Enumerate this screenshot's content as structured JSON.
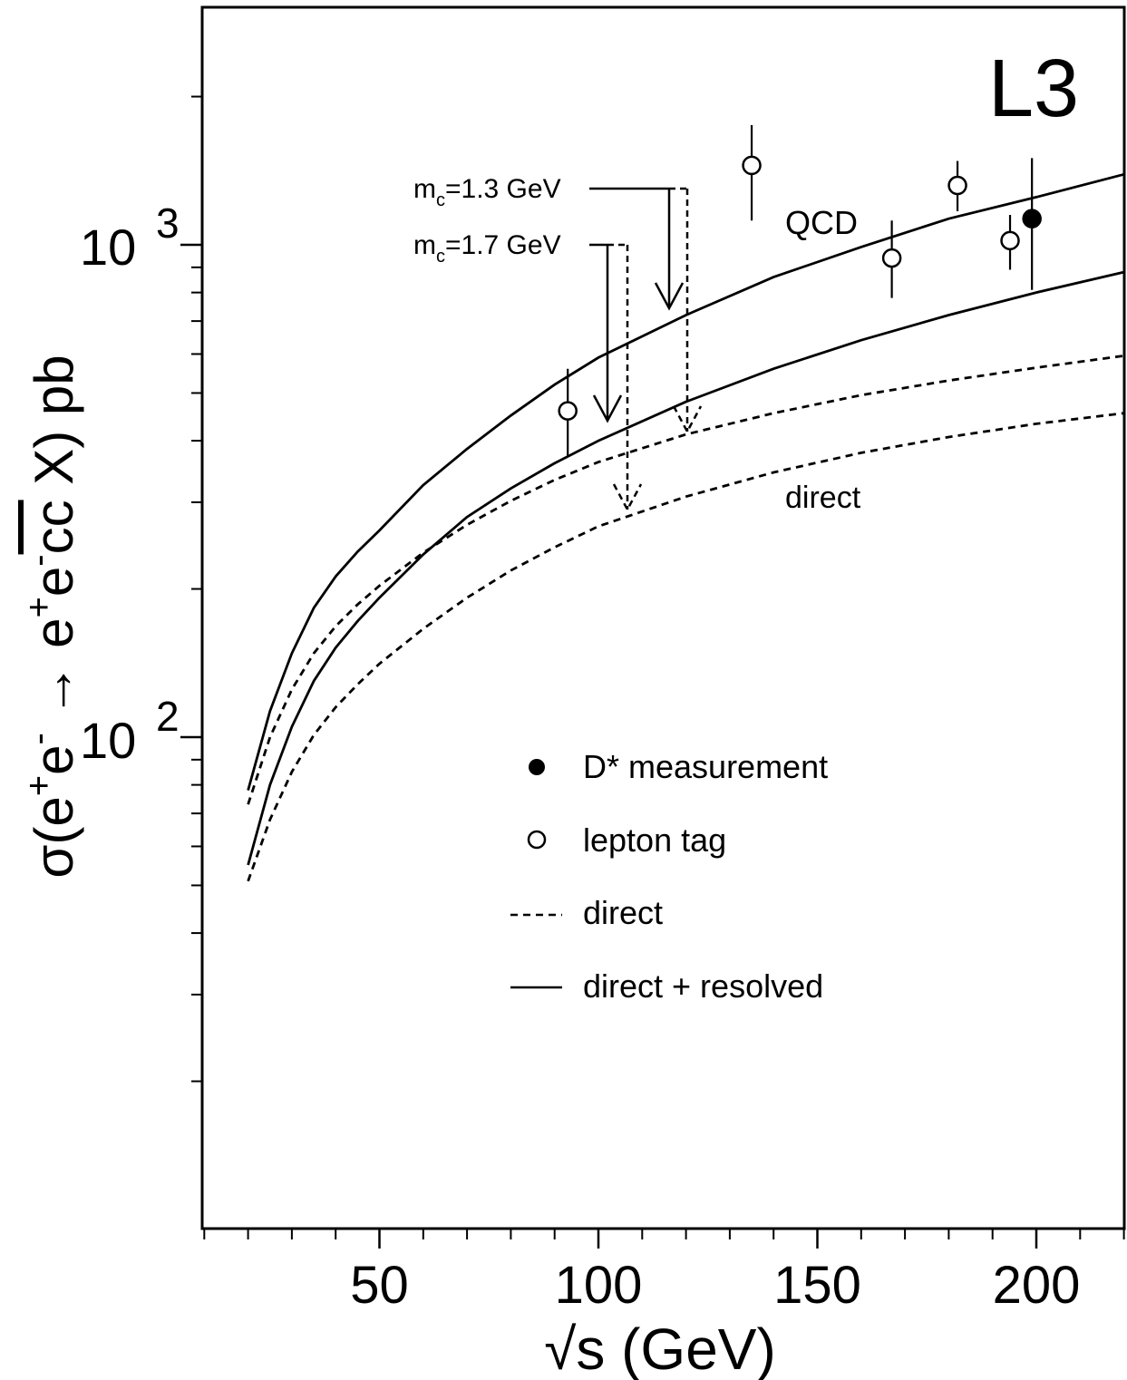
{
  "chart_data": {
    "type": "line",
    "experiment_label": "L3",
    "xlabel": "√s (GeV)",
    "ylabel": {
      "main": "σ(e",
      "sup1": "+",
      "e2": "e",
      "sup2": "-",
      "arrow": " → e",
      "sup3": "+",
      "e4": "e",
      "sup4": "-",
      "cc": "cc",
      "tail": " X) pb"
    },
    "xlim": [
      10,
      220
    ],
    "ylim": [
      15,
      2600
    ],
    "yscale": "log",
    "x_ticks": [
      {
        "value": 50,
        "label": "50"
      },
      {
        "value": 100,
        "label": "100"
      },
      {
        "value": 150,
        "label": "150"
      },
      {
        "value": 200,
        "label": "200"
      }
    ],
    "x_minor_ticks": [
      10,
      20,
      30,
      40,
      60,
      70,
      80,
      90,
      110,
      120,
      130,
      140,
      160,
      170,
      180,
      190,
      210,
      220
    ],
    "y_ticks": [
      {
        "value": 100,
        "base": "10",
        "exp": "2"
      },
      {
        "value": 1000,
        "base": "10",
        "exp": "3"
      }
    ],
    "y_minor_ticks": [
      20,
      30,
      40,
      50,
      60,
      70,
      80,
      90,
      200,
      300,
      400,
      500,
      600,
      700,
      800,
      900,
      2000
    ],
    "curves": [
      {
        "style": "solid",
        "name": "direct + resolved",
        "mass_label": "m_c=1.3 GeV",
        "x": [
          20,
          25,
          30,
          35,
          40,
          45,
          50,
          60,
          70,
          80,
          90,
          100,
          120,
          140,
          160,
          180,
          200,
          220
        ],
        "y": [
          78,
          113,
          148,
          183,
          212,
          238,
          263,
          325,
          385,
          450,
          520,
          590,
          720,
          860,
          990,
          1130,
          1250,
          1390
        ]
      },
      {
        "style": "solid",
        "name": "direct + resolved",
        "mass_label": "m_c=1.7 GeV",
        "x": [
          20,
          25,
          30,
          35,
          40,
          45,
          50,
          60,
          70,
          80,
          90,
          100,
          120,
          140,
          160,
          180,
          200,
          220
        ],
        "y": [
          55,
          80,
          105,
          130,
          152,
          172,
          192,
          235,
          280,
          320,
          360,
          400,
          480,
          560,
          640,
          720,
          800,
          880
        ]
      },
      {
        "style": "dashed",
        "name": "direct",
        "mass_label": "m_c=1.3 GeV",
        "x": [
          20,
          25,
          30,
          35,
          40,
          45,
          50,
          60,
          70,
          80,
          90,
          100,
          120,
          140,
          160,
          180,
          200,
          220
        ],
        "y": [
          73,
          100,
          125,
          148,
          168,
          186,
          203,
          237,
          270,
          302,
          333,
          362,
          412,
          455,
          495,
          530,
          563,
          595
        ]
      },
      {
        "style": "dashed",
        "name": "direct",
        "mass_label": "m_c=1.7 GeV",
        "x": [
          20,
          25,
          30,
          35,
          40,
          45,
          50,
          60,
          70,
          80,
          90,
          100,
          120,
          140,
          160,
          180,
          200,
          220
        ],
        "y": [
          51,
          68,
          85,
          101,
          115,
          128,
          141,
          166,
          192,
          218,
          243,
          268,
          308,
          345,
          378,
          407,
          433,
          455
        ]
      }
    ],
    "data_points": [
      {
        "series": "lepton tag",
        "filled": false,
        "x": 93,
        "y": 460,
        "yerr": [
          370,
          560
        ]
      },
      {
        "series": "lepton tag",
        "filled": false,
        "x": 135,
        "y": 1450,
        "yerr": [
          1120,
          1750
        ]
      },
      {
        "series": "lepton tag",
        "filled": false,
        "x": 167,
        "y": 940,
        "yerr": [
          780,
          1120
        ]
      },
      {
        "series": "lepton tag",
        "filled": false,
        "x": 182,
        "y": 1320,
        "yerr": [
          1170,
          1480
        ]
      },
      {
        "series": "lepton tag",
        "filled": false,
        "x": 194,
        "y": 1020,
        "yerr": [
          890,
          1150
        ]
      },
      {
        "series": "D* measurement",
        "filled": true,
        "x": 199,
        "y": 1130,
        "yerr": [
          810,
          1500
        ]
      }
    ],
    "annotations": {
      "qcd": "QCD",
      "direct": "direct",
      "mc13": {
        "prefix": "m",
        "sub": "c",
        "suffix": "=1.3 GeV"
      },
      "mc17": {
        "prefix": "m",
        "sub": "c",
        "suffix": "=1.7 GeV"
      }
    },
    "legend": {
      "placement": "center",
      "entries": [
        {
          "label": "D* measurement",
          "marker": "filled-circle"
        },
        {
          "label": "lepton tag",
          "marker": "open-circle"
        },
        {
          "label": "direct",
          "marker": "dashed-line"
        },
        {
          "label": "direct + resolved",
          "marker": "solid-line"
        }
      ]
    },
    "grid": false
  }
}
